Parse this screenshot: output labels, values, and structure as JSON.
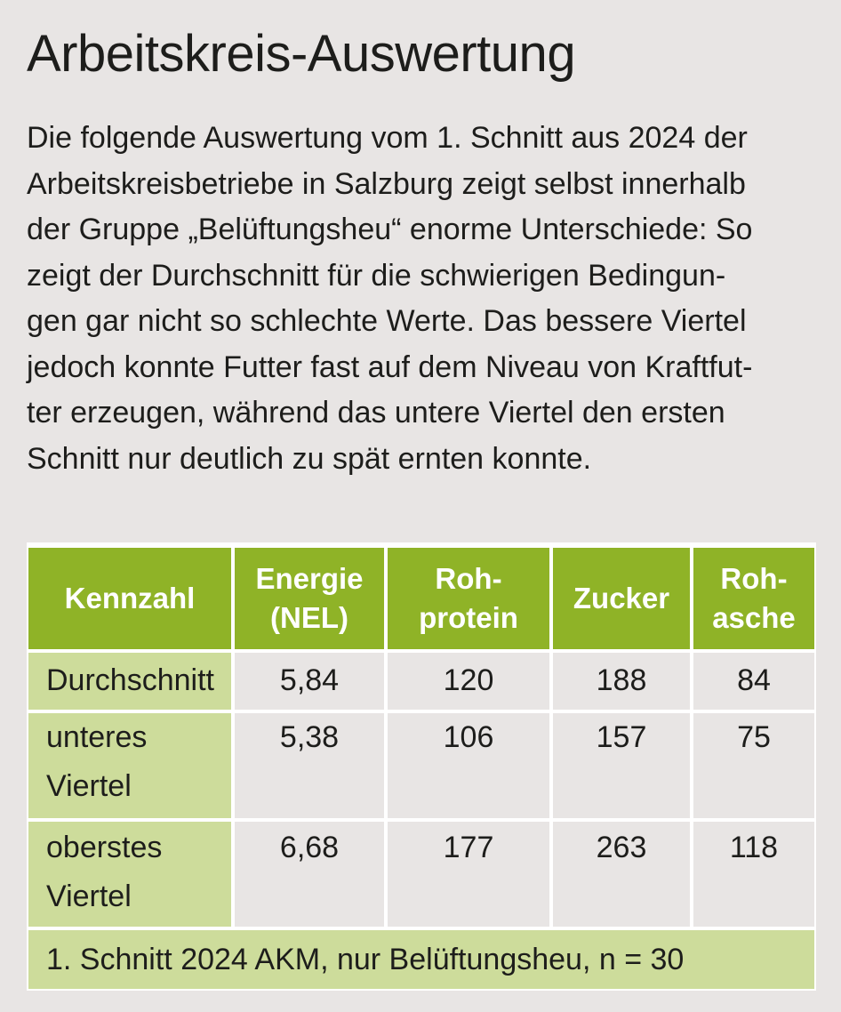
{
  "title": "Arbeitskreis-Auswertung",
  "intro_lines": [
    "Die folgende Auswertung vom 1. Schnitt aus 2024 der",
    "Arbeitskreisbetriebe in Salzburg zeigt selbst innerhalb",
    "der Gruppe „Belüftungsheu“ enorme Unterschiede: So",
    "zeigt der Durchschnitt für die schwierigen Bedingun-",
    "gen gar nicht so schlechte Werte. Das bessere Viertel",
    "jedoch konnte Futter fast auf dem Niveau von Kraftfut-",
    "ter erzeugen, während das untere Viertel den ersten",
    "Schnitt nur deutlich zu spät ernten konnte."
  ],
  "table": {
    "headers": [
      {
        "line1": "Kennzahl",
        "line2": ""
      },
      {
        "line1": "Energie",
        "line2": "(NEL)"
      },
      {
        "line1": "Roh-",
        "line2": "protein"
      },
      {
        "line1": "Zucker",
        "line2": ""
      },
      {
        "line1": "Roh-",
        "line2": "asche"
      }
    ],
    "rows": [
      {
        "line1": "Durchschnitt",
        "line2": "",
        "values": [
          "5,84",
          "120",
          "188",
          "84"
        ]
      },
      {
        "line1": "unteres",
        "line2": "Viertel",
        "values": [
          "5,38",
          "106",
          "157",
          "75"
        ]
      },
      {
        "line1": "oberstes",
        "line2": "Viertel",
        "values": [
          "6,68",
          "177",
          "263",
          "118"
        ]
      }
    ],
    "footer": "1. Schnitt 2024 AKM, nur Belüftungsheu, n = 30"
  }
}
